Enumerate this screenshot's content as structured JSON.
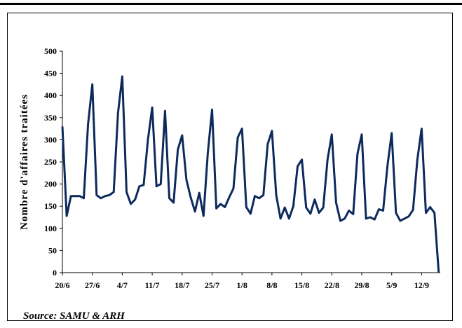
{
  "chart_data": {
    "type": "line",
    "title": "",
    "ylabel": "Nombre d'affaires traitées",
    "xlabel": "",
    "ylim": [
      0,
      500
    ],
    "yticks": [
      0,
      50,
      100,
      150,
      200,
      250,
      300,
      350,
      400,
      450,
      500
    ],
    "xtick_labels": [
      "20/6",
      "27/6",
      "4/7",
      "11/7",
      "18/7",
      "25/7",
      "1/8",
      "8/8",
      "15/8",
      "22/8",
      "29/8",
      "5/9",
      "12/9"
    ],
    "grid": false,
    "line_color": "#0d2a5c",
    "series": [
      {
        "values": [
          330,
          128,
          173,
          173,
          173,
          168,
          335,
          425,
          175,
          168,
          173,
          175,
          182,
          360,
          443,
          182,
          155,
          165,
          195,
          198,
          300,
          373,
          195,
          200,
          365,
          168,
          158,
          278,
          310,
          210,
          170,
          138,
          180,
          128,
          270,
          368,
          145,
          155,
          148,
          170,
          190,
          305,
          325,
          148,
          133,
          173,
          168,
          175,
          290,
          320,
          175,
          122,
          147,
          122,
          150,
          240,
          255,
          147,
          133,
          165,
          135,
          147,
          255,
          312,
          158,
          117,
          122,
          140,
          132,
          268,
          312,
          122,
          125,
          120,
          143,
          140,
          240,
          315,
          135,
          117,
          122,
          127,
          142,
          255,
          325,
          135,
          148,
          135,
          0
        ]
      }
    ]
  },
  "source": "Source: SAMU & ARH"
}
